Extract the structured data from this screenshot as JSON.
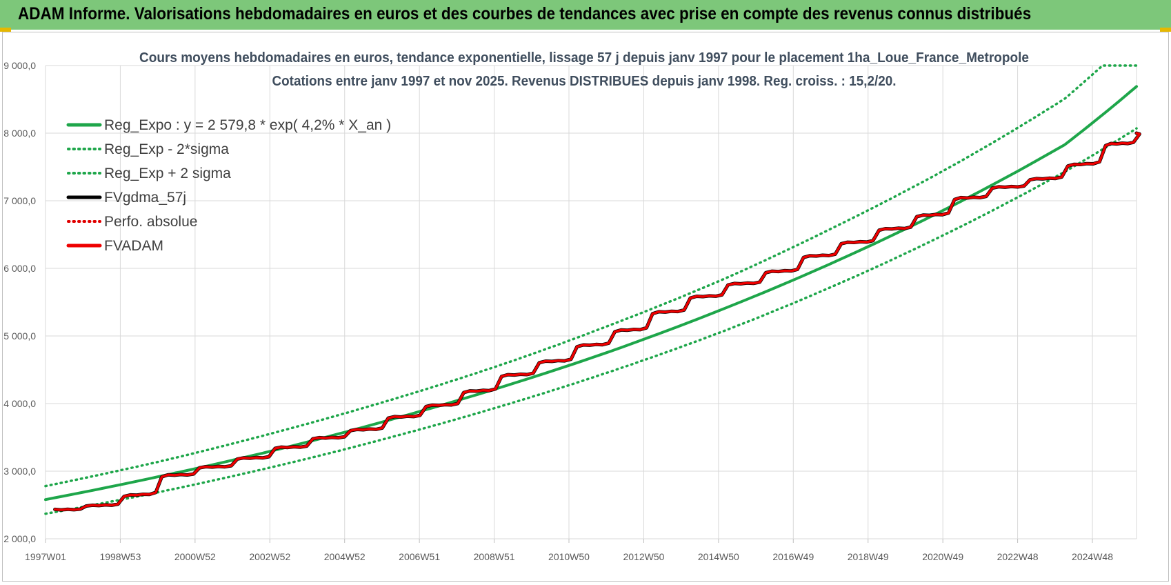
{
  "header": {
    "title": "ADAM Informe. Valorisations hebdomadaires en euros et des courbes de tendances avec prise en compte des revenus connus distribués"
  },
  "chart_data": {
    "type": "line",
    "title": "Cours moyens hebdomadaires en euros, tendance exponentielle, lissage 57 j depuis janv 1997  pour le  placement 1ha_Loue_France_Metropole",
    "subtitle": "Cotations entre janv 1997 et nov 2025. Revenus  DISTRIBUES depuis janv 1998.  Reg. croiss. : 15,2/20.",
    "xlabel": "",
    "ylabel": "",
    "ylim": [
      2000,
      9000
    ],
    "y_ticks": [
      "2 000,0",
      "3 000,0",
      "4 000,0",
      "5 000,0",
      "6 000,0",
      "7 000,0",
      "8 000,0",
      "9 000,0"
    ],
    "x_ticks": [
      "1997W01",
      "1998W53",
      "2000W52",
      "2002W52",
      "2004W52",
      "2006W51",
      "2008W51",
      "2010W50",
      "2012W50",
      "2014W50",
      "2016W49",
      "2018W49",
      "2020W49",
      "2022W48",
      "2024W48"
    ],
    "grid": true,
    "legend_position": "top-left",
    "series": [
      {
        "name": "Reg_Expo : y = 2 579,8 * exp( 4,2% *  X_an )",
        "color": "#1ea64a",
        "style": "solid",
        "x": [
          1997.0,
          2000.0,
          2003.0,
          2006.0,
          2009.0,
          2012.0,
          2015.0,
          2018.0,
          2021.0,
          2024.0,
          2025.9
        ],
        "values": [
          2580,
          2920,
          3300,
          3740,
          4230,
          4780,
          5410,
          6120,
          6920,
          7830,
          8690
        ]
      },
      {
        "name": "Reg_Exp - 2*sigma",
        "color": "#1ea64a",
        "style": "dotted",
        "x": [
          1997.0,
          2000.0,
          2003.0,
          2006.0,
          2009.0,
          2012.0,
          2015.0,
          2018.0,
          2021.0,
          2024.0,
          2025.9
        ],
        "values": [
          2370,
          2690,
          3060,
          3480,
          3950,
          4480,
          5080,
          5770,
          6550,
          7430,
          8070
        ]
      },
      {
        "name": "Reg_Exp + 2 sigma",
        "color": "#1ea64a",
        "style": "dotted",
        "x": [
          1997.0,
          2000.0,
          2003.0,
          2006.0,
          2009.0,
          2012.0,
          2015.0,
          2018.0,
          2021.0,
          2024.0,
          2025.0,
          2025.9
        ],
        "values": [
          2780,
          3140,
          3560,
          4030,
          4560,
          5170,
          5850,
          6640,
          7510,
          8510,
          9000,
          9000
        ]
      },
      {
        "name": "FVgdma_57j",
        "color": "#000000",
        "style": "solid",
        "x": [
          1997.0,
          1998.0,
          1999.0,
          2000.0,
          2001.0,
          2002.0,
          2003.0,
          2004.0,
          2005.0,
          2006.0,
          2007.0,
          2008.0,
          2009.0,
          2010.0,
          2011.0,
          2012.0,
          2013.0,
          2014.0,
          2015.0,
          2016.0,
          2017.0,
          2018.0,
          2019.0,
          2020.0,
          2021.0,
          2022.0,
          2023.0,
          2024.0,
          2025.0,
          2025.9
        ],
        "values": [
          2430,
          2490,
          2640,
          2940,
          3060,
          3190,
          3350,
          3490,
          3610,
          3800,
          3970,
          4180,
          4420,
          4620,
          4860,
          5080,
          5350,
          5580,
          5770,
          5950,
          6180,
          6380,
          6580,
          6780,
          7040,
          7200,
          7320,
          7530,
          7840,
          8000
        ]
      },
      {
        "name": "Perfo. absolue",
        "color": "#e00000",
        "style": "dotted",
        "x": [
          1997.0,
          1998.0,
          1999.0,
          2000.0,
          2001.0,
          2002.0,
          2003.0,
          2004.0,
          2005.0,
          2006.0,
          2007.0,
          2008.0,
          2009.0,
          2010.0,
          2011.0,
          2012.0,
          2013.0,
          2014.0,
          2015.0,
          2016.0,
          2017.0,
          2018.0,
          2019.0,
          2020.0,
          2021.0,
          2022.0,
          2023.0,
          2024.0,
          2025.0,
          2025.9
        ],
        "values": [
          2430,
          2490,
          2640,
          2940,
          3060,
          3190,
          3350,
          3490,
          3610,
          3800,
          3970,
          4180,
          4420,
          4620,
          4860,
          5080,
          5350,
          5580,
          5770,
          5950,
          6180,
          6380,
          6580,
          6780,
          7040,
          7200,
          7320,
          7530,
          7840,
          8000
        ]
      },
      {
        "name": "FVADAM",
        "color": "#ee0000",
        "style": "solid",
        "x": [
          1997.0,
          1998.0,
          1999.0,
          2000.0,
          2001.0,
          2002.0,
          2003.0,
          2004.0,
          2005.0,
          2006.0,
          2007.0,
          2008.0,
          2009.0,
          2010.0,
          2011.0,
          2012.0,
          2013.0,
          2014.0,
          2015.0,
          2016.0,
          2017.0,
          2018.0,
          2019.0,
          2020.0,
          2021.0,
          2022.0,
          2023.0,
          2024.0,
          2025.0,
          2025.9
        ],
        "values": [
          2430,
          2490,
          2640,
          2940,
          3060,
          3190,
          3350,
          3490,
          3610,
          3800,
          3970,
          4180,
          4420,
          4620,
          4860,
          5080,
          5350,
          5580,
          5770,
          5950,
          6180,
          6380,
          6580,
          6780,
          7040,
          7200,
          7320,
          7530,
          7840,
          8000
        ]
      }
    ]
  }
}
